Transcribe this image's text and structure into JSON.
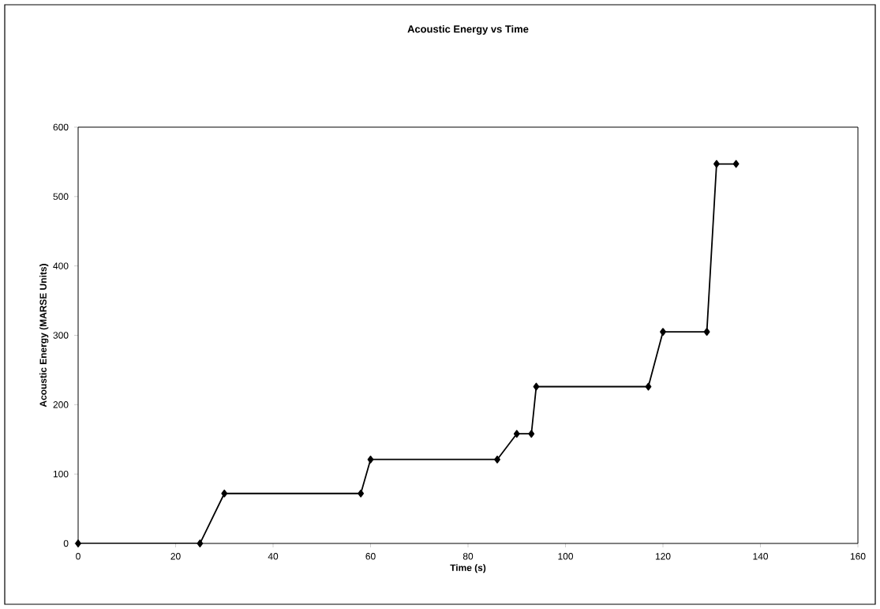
{
  "chart_data": {
    "type": "line",
    "title": "Acoustic Energy vs Time",
    "xlabel": "Time (s)",
    "ylabel": "Acoustic Energy (MARSE Units)",
    "x": [
      0,
      25,
      30,
      58,
      60,
      86,
      90,
      93,
      94,
      117,
      120,
      129,
      131,
      135
    ],
    "values": [
      0,
      0,
      72,
      72,
      121,
      121,
      158,
      158,
      226,
      226,
      305,
      305,
      547,
      547
    ],
    "color": "#000000",
    "marker": "diamond",
    "line_style": "solid",
    "grid": false,
    "xlim": [
      0,
      160
    ],
    "xticks": [
      0,
      20,
      40,
      60,
      80,
      100,
      120,
      140,
      160
    ],
    "ylim": [
      0,
      600
    ],
    "yticks": [
      0,
      100,
      200,
      300,
      400,
      500,
      600
    ]
  }
}
